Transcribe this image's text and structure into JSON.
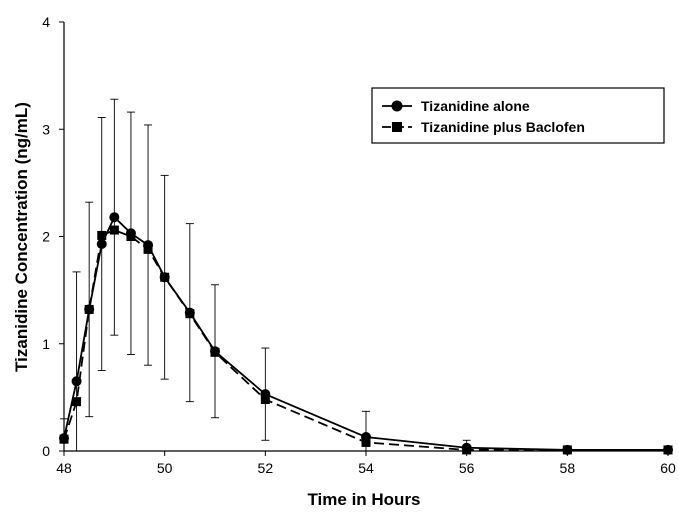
{
  "chart_data": {
    "type": "line",
    "xlabel": "Time in Hours",
    "ylabel": "Tizanidine Concentration (ng/mL)",
    "xlim": [
      48,
      60
    ],
    "ylim": [
      0,
      4
    ],
    "x_ticks": [
      48,
      50,
      52,
      54,
      56,
      58,
      60
    ],
    "y_ticks": [
      0,
      1,
      2,
      3,
      4
    ],
    "grid": false,
    "legend_position": "top-right",
    "series": [
      {
        "name": "Tizanidine alone",
        "marker": "circle",
        "line_style": "solid",
        "color": "#000000",
        "x": [
          48,
          48.25,
          48.5,
          48.75,
          49,
          49.33,
          49.67,
          50,
          50.5,
          51,
          52,
          54,
          56,
          58,
          60
        ],
        "y": [
          0.12,
          0.65,
          1.32,
          1.93,
          2.18,
          2.03,
          1.92,
          1.62,
          1.29,
          0.93,
          0.53,
          0.13,
          0.03,
          0.01,
          0.01
        ],
        "err": [
          0.18,
          1.02,
          1.0,
          1.18,
          1.1,
          1.13,
          1.12,
          0.95,
          0.83,
          0.62,
          0.43,
          0.24,
          0.07,
          0.02,
          0.02
        ]
      },
      {
        "name": "Tizanidine plus Baclofen",
        "marker": "square",
        "line_style": "dashed",
        "color": "#000000",
        "x": [
          48,
          48.25,
          48.5,
          48.75,
          49,
          49.33,
          49.67,
          50,
          50.5,
          51,
          52,
          54,
          56,
          58,
          60
        ],
        "y": [
          0.11,
          0.46,
          1.32,
          2.01,
          2.06,
          2.0,
          1.88,
          1.62,
          1.28,
          0.92,
          0.48,
          0.08,
          0.01,
          0.01,
          0.01
        ]
      }
    ]
  }
}
